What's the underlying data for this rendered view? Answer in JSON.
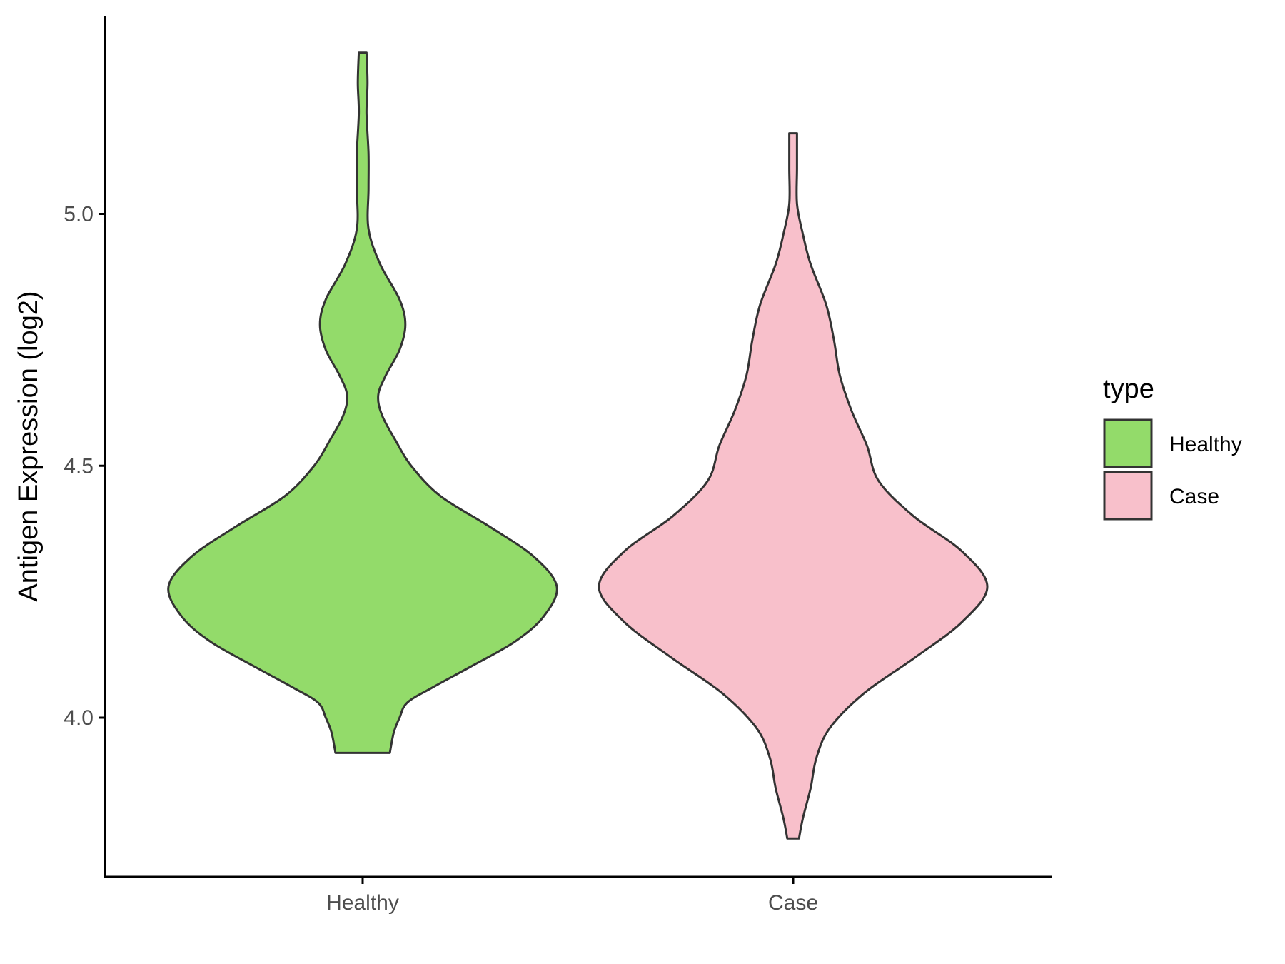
{
  "chart_data": {
    "type": "violin",
    "ylabel": "Antigen Expression (log2)",
    "xlabel": "",
    "categories": [
      "Healthy",
      "Case"
    ],
    "ylim": [
      3.7,
      5.4
    ],
    "yticks": [
      4.0,
      4.5,
      5.0
    ],
    "ytick_labels": [
      "4.0",
      "4.5",
      "5.0"
    ],
    "legend": {
      "title": "type",
      "position": "right",
      "entries": [
        {
          "label": "Healthy",
          "color": "#93DB6A"
        },
        {
          "label": "Case",
          "color": "#F8C0CB"
        }
      ]
    },
    "series": [
      {
        "category": "Healthy",
        "color": "#93DB6A",
        "y_min": 3.93,
        "y_max": 5.32,
        "profile": [
          [
            3.93,
            0.14
          ],
          [
            3.97,
            0.16
          ],
          [
            4.0,
            0.19
          ],
          [
            4.03,
            0.23
          ],
          [
            4.06,
            0.36
          ],
          [
            4.1,
            0.55
          ],
          [
            4.15,
            0.78
          ],
          [
            4.2,
            0.93
          ],
          [
            4.26,
            1.0
          ],
          [
            4.32,
            0.88
          ],
          [
            4.38,
            0.65
          ],
          [
            4.44,
            0.4
          ],
          [
            4.5,
            0.25
          ],
          [
            4.55,
            0.17
          ],
          [
            4.6,
            0.1
          ],
          [
            4.64,
            0.08
          ],
          [
            4.68,
            0.12
          ],
          [
            4.73,
            0.19
          ],
          [
            4.78,
            0.22
          ],
          [
            4.83,
            0.19
          ],
          [
            4.9,
            0.09
          ],
          [
            4.97,
            0.03
          ],
          [
            5.05,
            0.03
          ],
          [
            5.12,
            0.03
          ],
          [
            5.2,
            0.02
          ],
          [
            5.26,
            0.025
          ],
          [
            5.32,
            0.02
          ]
        ]
      },
      {
        "category": "Case",
        "color": "#F8C0CB",
        "y_min": 3.76,
        "y_max": 5.16,
        "profile": [
          [
            3.76,
            0.03
          ],
          [
            3.8,
            0.05
          ],
          [
            3.86,
            0.09
          ],
          [
            3.92,
            0.12
          ],
          [
            3.98,
            0.19
          ],
          [
            4.05,
            0.37
          ],
          [
            4.12,
            0.63
          ],
          [
            4.19,
            0.87
          ],
          [
            4.26,
            1.0
          ],
          [
            4.33,
            0.87
          ],
          [
            4.4,
            0.62
          ],
          [
            4.47,
            0.44
          ],
          [
            4.54,
            0.38
          ],
          [
            4.61,
            0.3
          ],
          [
            4.68,
            0.24
          ],
          [
            4.75,
            0.21
          ],
          [
            4.82,
            0.17
          ],
          [
            4.9,
            0.09
          ],
          [
            4.96,
            0.05
          ],
          [
            5.02,
            0.02
          ],
          [
            5.09,
            0.02
          ],
          [
            5.16,
            0.02
          ]
        ]
      }
    ]
  }
}
